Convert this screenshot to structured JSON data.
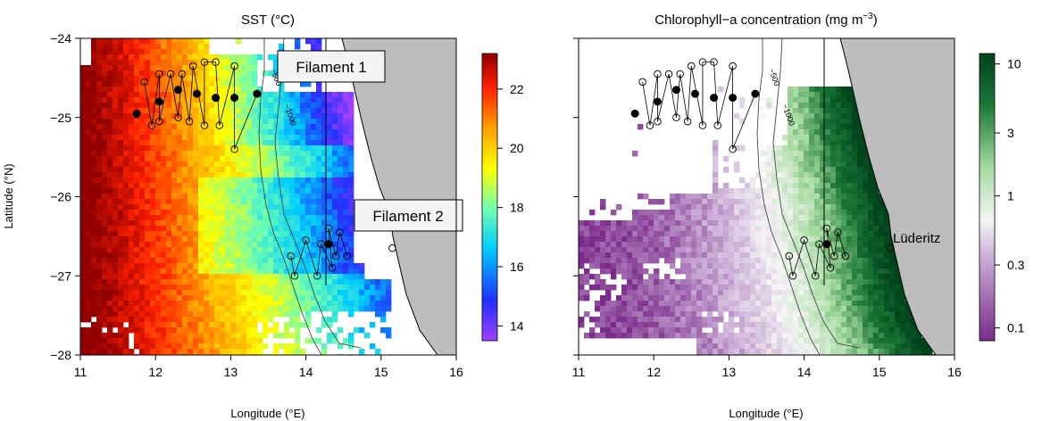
{
  "chart_data": [
    {
      "type": "heatmap",
      "title": "SST (°C)",
      "xlabel": "Longitude (°E)",
      "ylabel": "Latitude (°N)",
      "xlim": [
        11,
        16
      ],
      "ylim": [
        -28,
        -24
      ],
      "xticks": [
        "11",
        "12",
        "13",
        "14",
        "15",
        "16"
      ],
      "yticks": [
        "−24",
        "−25",
        "−26",
        "−27",
        "−28"
      ],
      "colorbar": {
        "range": [
          13.5,
          23.2
        ],
        "scale": "linear",
        "ticks": [
          "22",
          "20",
          "18",
          "16",
          "14"
        ],
        "tick_values": [
          22,
          20,
          18,
          16,
          14
        ],
        "colors": [
          "#a040ff",
          "#2030ff",
          "#00ccff",
          "#70ffb0",
          "#ffff00",
          "#ffa000",
          "#ff2000",
          "#900000"
        ]
      },
      "annotations": [
        "Filament 1",
        "Filament 2"
      ],
      "contour_labels": [
        "−500",
        "−1000"
      ]
    },
    {
      "type": "heatmap",
      "title": "Chlorophyll−a concentration (mg m",
      "title_superscript": "−3",
      "title_suffix": ")",
      "xlabel": "Longitude (°E)",
      "xlim": [
        11,
        16
      ],
      "ylim": [
        -28,
        -24
      ],
      "xticks": [
        "11",
        "12",
        "13",
        "14",
        "15",
        "16"
      ],
      "colorbar": {
        "range": [
          0.08,
          12
        ],
        "scale": "log",
        "ticks": [
          "10",
          "3",
          "1",
          "0.3",
          "0.1"
        ],
        "tick_values": [
          10,
          3,
          1,
          0.3,
          0.1
        ],
        "colors": [
          "#7b2a8a",
          "#c7a8d4",
          "#f5f5f5",
          "#a6dba0",
          "#1b7837",
          "#00441b"
        ]
      },
      "annotations": [
        "Lüderitz"
      ],
      "contour_labels": [
        "−500",
        "−1000"
      ]
    }
  ],
  "stations": {
    "open": [
      [
        11.85,
        -24.55
      ],
      [
        11.95,
        -25.1
      ],
      [
        12.05,
        -24.45
      ],
      [
        12.05,
        -25.05
      ],
      [
        12.2,
        -24.45
      ],
      [
        12.3,
        -25.0
      ],
      [
        12.35,
        -24.45
      ],
      [
        12.45,
        -25.05
      ],
      [
        12.5,
        -24.35
      ],
      [
        12.65,
        -24.3
      ],
      [
        12.65,
        -25.1
      ],
      [
        12.8,
        -24.3
      ],
      [
        12.85,
        -25.1
      ],
      [
        13.05,
        -24.35
      ],
      [
        13.05,
        -25.4
      ],
      [
        14.3,
        -26.4
      ],
      [
        14.45,
        -26.45
      ],
      [
        14.0,
        -26.55
      ],
      [
        13.8,
        -26.75
      ],
      [
        13.85,
        -27.0
      ],
      [
        14.15,
        -27.0
      ],
      [
        14.35,
        -26.9
      ],
      [
        14.55,
        -26.75
      ],
      [
        14.4,
        -26.75
      ],
      [
        14.2,
        -26.6
      ],
      [
        15.15,
        -26.65
      ]
    ],
    "filled": [
      [
        11.75,
        -24.95
      ],
      [
        12.05,
        -24.8
      ],
      [
        12.3,
        -24.65
      ],
      [
        12.55,
        -24.7
      ],
      [
        12.8,
        -24.75
      ],
      [
        13.05,
        -24.75
      ],
      [
        13.35,
        -24.7
      ],
      [
        14.3,
        -26.6
      ]
    ]
  }
}
